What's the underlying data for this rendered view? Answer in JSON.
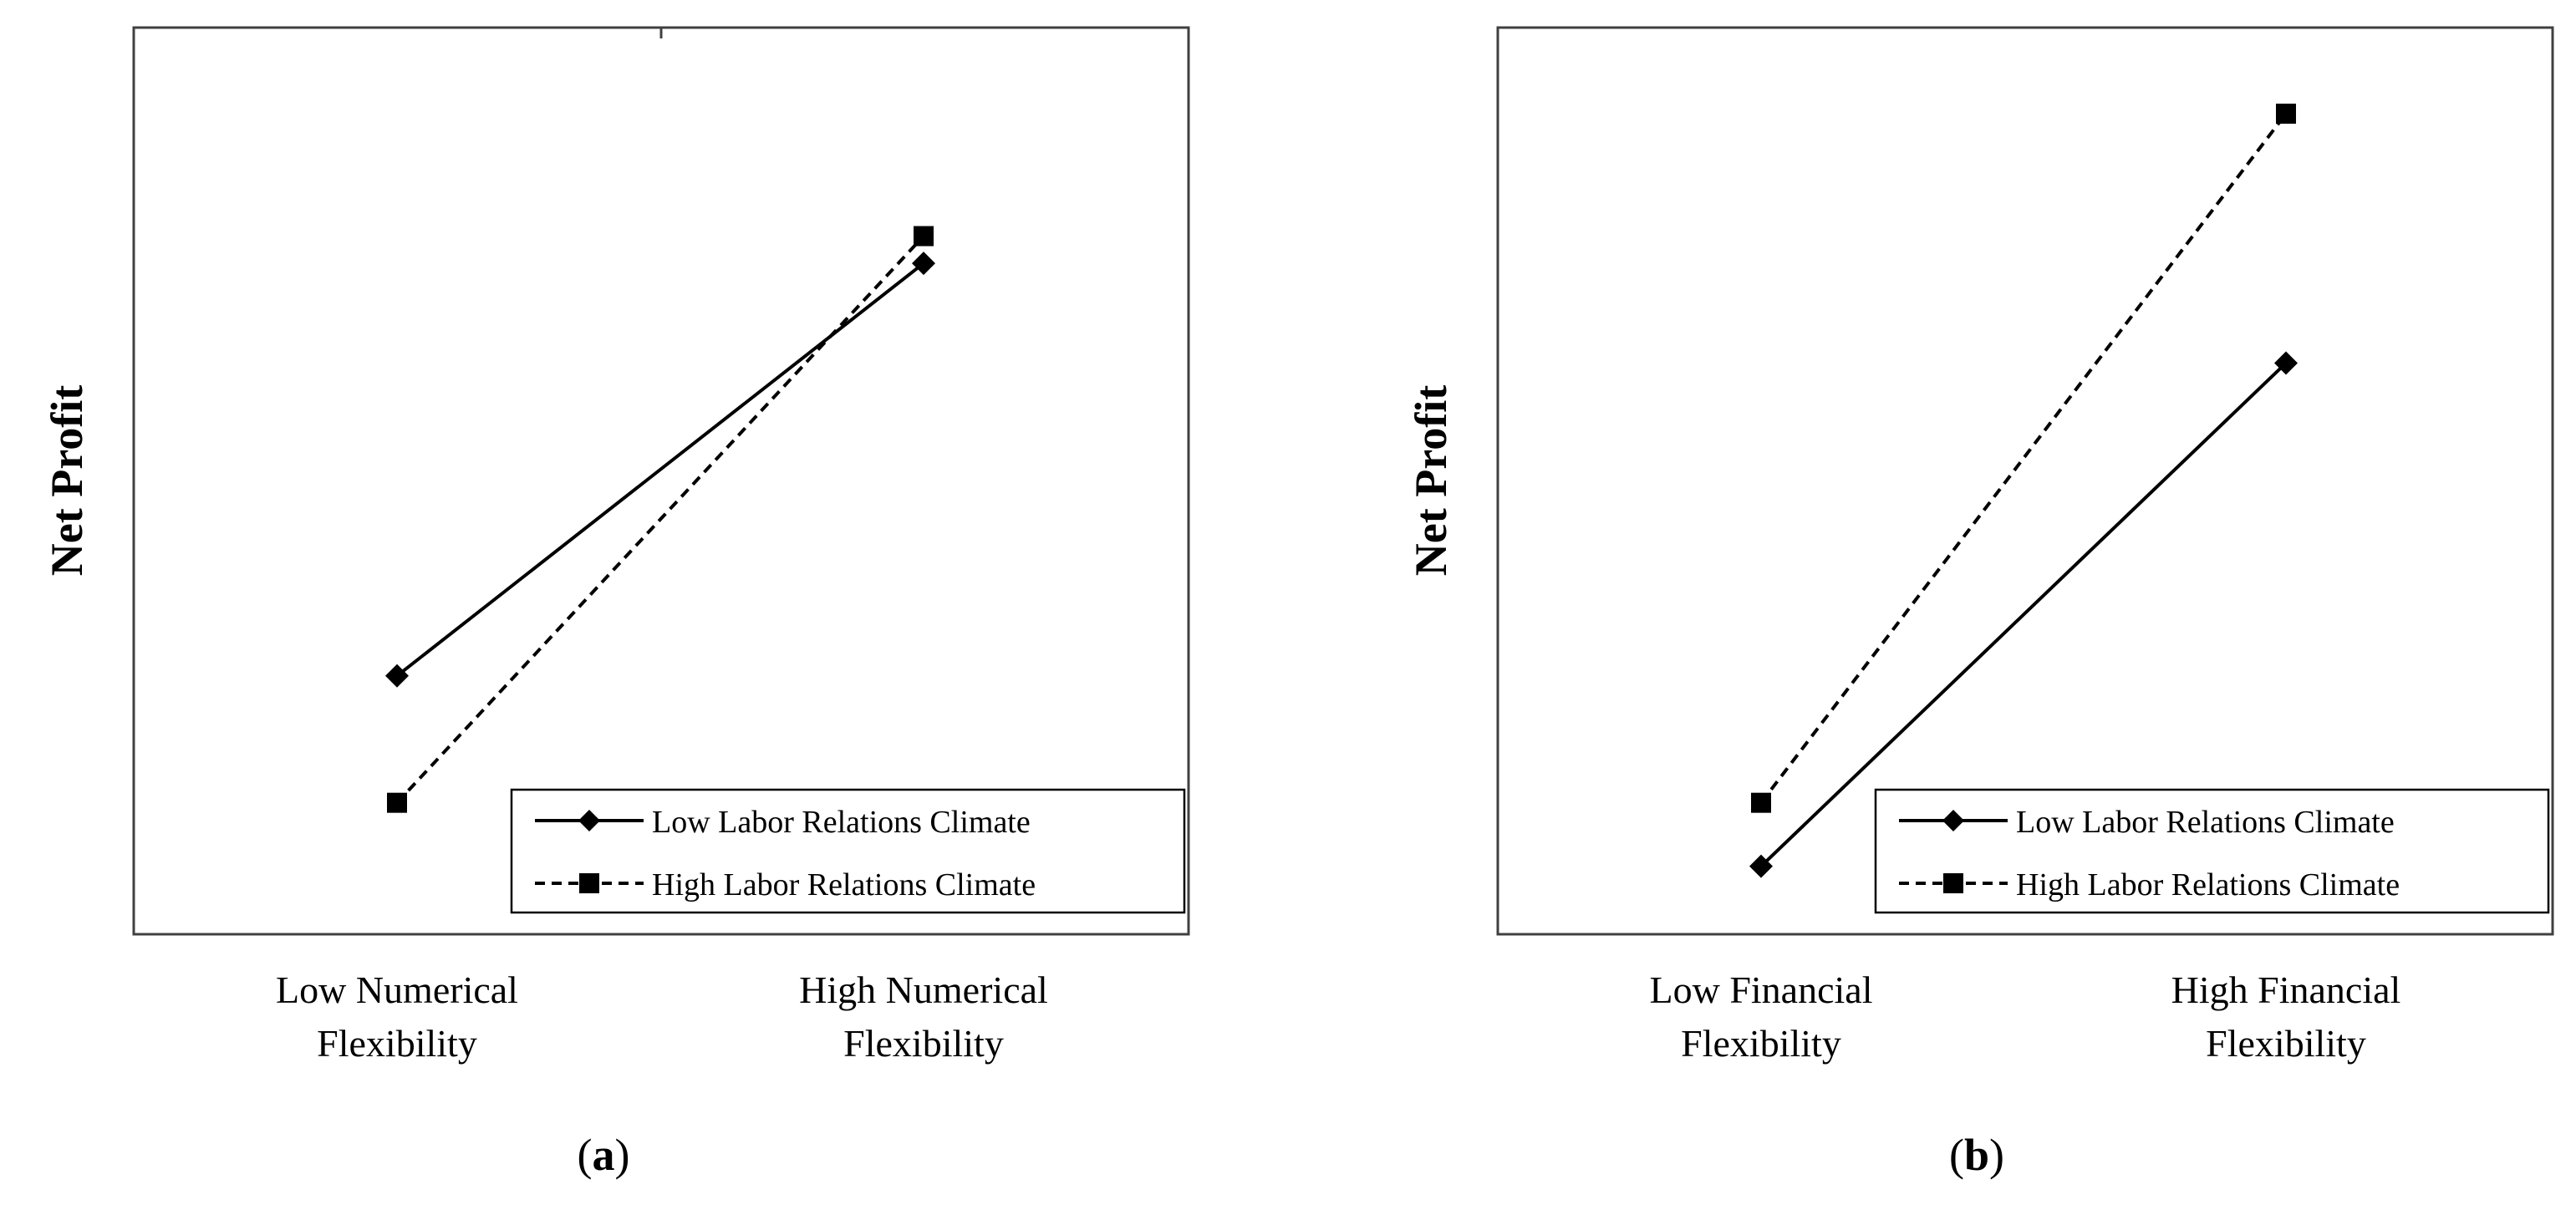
{
  "chart_data": [
    {
      "type": "line",
      "panel_label": "(a)",
      "panel_letter": "a",
      "ylabel": "Net Profit",
      "categories": [
        [
          "Low Numerical",
          "Flexibility"
        ],
        [
          "High Numerical",
          "Flexibility"
        ]
      ],
      "ylim": [
        0,
        100
      ],
      "grid": false,
      "legend_position": "bottom-right",
      "series": [
        {
          "name": "Low Labor Relations Climate",
          "marker": "diamond",
          "line": "solid",
          "values": [
            28.5,
            74
          ]
        },
        {
          "name": "High Labor Relations Climate",
          "marker": "square",
          "line": "dashed",
          "values": [
            14.5,
            77
          ]
        }
      ]
    },
    {
      "type": "line",
      "panel_label": "(b)",
      "panel_letter": "b",
      "ylabel": "Net Profit",
      "categories": [
        [
          "Low Financial",
          "Flexibility"
        ],
        [
          "High Financial",
          "Flexibility"
        ]
      ],
      "ylim": [
        0,
        100
      ],
      "grid": false,
      "legend_position": "bottom-right",
      "series": [
        {
          "name": "Low Labor Relations Climate",
          "marker": "diamond",
          "line": "solid",
          "values": [
            7.5,
            63
          ]
        },
        {
          "name": "High Labor Relations Climate",
          "marker": "square",
          "line": "dashed",
          "values": [
            14.5,
            90.5
          ]
        }
      ]
    }
  ],
  "colors": {
    "ink": "#000000",
    "axis": "#404040",
    "background": "#ffffff"
  }
}
